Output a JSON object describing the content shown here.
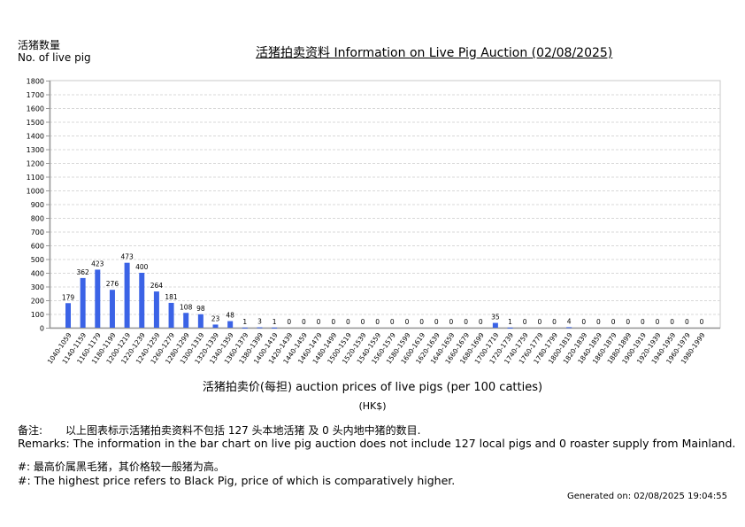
{
  "header": {
    "y_axis_title_cn": "活猪数量",
    "y_axis_title_en": "No. of live pig",
    "title": "活猪拍卖资料 Information on Live Pig Auction (02/08/2025)"
  },
  "axis": {
    "x_title": "活猪拍卖价(每担) auction prices of live pigs (per 100 catties)",
    "x_unit": "(HK$)"
  },
  "remarks": {
    "cn_label": "备注:",
    "cn_text": "以上图表标示活猪拍卖资料不包括 127 头本地活猪 及 0 头内地中猪的数目.",
    "en_text": "Remarks: The information in the bar chart on live pig auction does not include 127 local pigs and 0 roaster supply from Mainland."
  },
  "notes": {
    "cn": "#: 最高价属黑毛猪，其价格较一般猪为高。",
    "en": "#: The highest price refers to Black Pig, price of which is comparatively higher."
  },
  "footer": {
    "generated": "Generated on: 02/08/2025 19:04:55"
  },
  "colors": {
    "bar": "#3b63e6",
    "grid": "#d8d8d8",
    "axis": "#999999"
  },
  "chart_data": {
    "type": "bar",
    "title": "活猪拍卖资料 Information on Live Pig Auction (02/08/2025)",
    "xlabel": "活猪拍卖价(每担) auction prices of live pigs (per 100 catties) (HK$)",
    "ylabel": "活猪数量 No. of live pig",
    "ylim": [
      0,
      1800
    ],
    "yticks": [
      0,
      100,
      200,
      300,
      400,
      500,
      600,
      700,
      800,
      900,
      1000,
      1100,
      1200,
      1300,
      1400,
      1500,
      1600,
      1700,
      1800
    ],
    "grid": true,
    "data_labels": true,
    "categories": [
      "1040-1059",
      "1140-1159",
      "1160-1179",
      "1180-1199",
      "1200-1219",
      "1220-1239",
      "1240-1259",
      "1260-1279",
      "1280-1299",
      "1300-1319",
      "1320-1339",
      "1340-1359",
      "1360-1379",
      "1380-1399",
      "1400-1419",
      "1420-1439",
      "1440-1459",
      "1460-1479",
      "1480-1499",
      "1500-1519",
      "1520-1539",
      "1540-1559",
      "1560-1579",
      "1580-1599",
      "1600-1619",
      "1620-1639",
      "1640-1659",
      "1660-1679",
      "1680-1699",
      "1700-1719",
      "1720-1739",
      "1740-1759",
      "1760-1779",
      "1780-1799",
      "1800-1819",
      "1820-1839",
      "1840-1859",
      "1860-1879",
      "1880-1899",
      "1900-1919",
      "1920-1939",
      "1940-1959",
      "1960-1979",
      "1980-1999"
    ],
    "values": [
      179,
      362,
      423,
      276,
      473,
      400,
      264,
      181,
      108,
      98,
      23,
      48,
      1,
      3,
      1,
      0,
      0,
      0,
      0,
      0,
      0,
      0,
      0,
      0,
      0,
      0,
      0,
      0,
      0,
      35,
      1,
      0,
      0,
      0,
      4,
      0,
      0,
      0,
      0,
      0,
      0,
      0,
      0,
      0
    ]
  }
}
